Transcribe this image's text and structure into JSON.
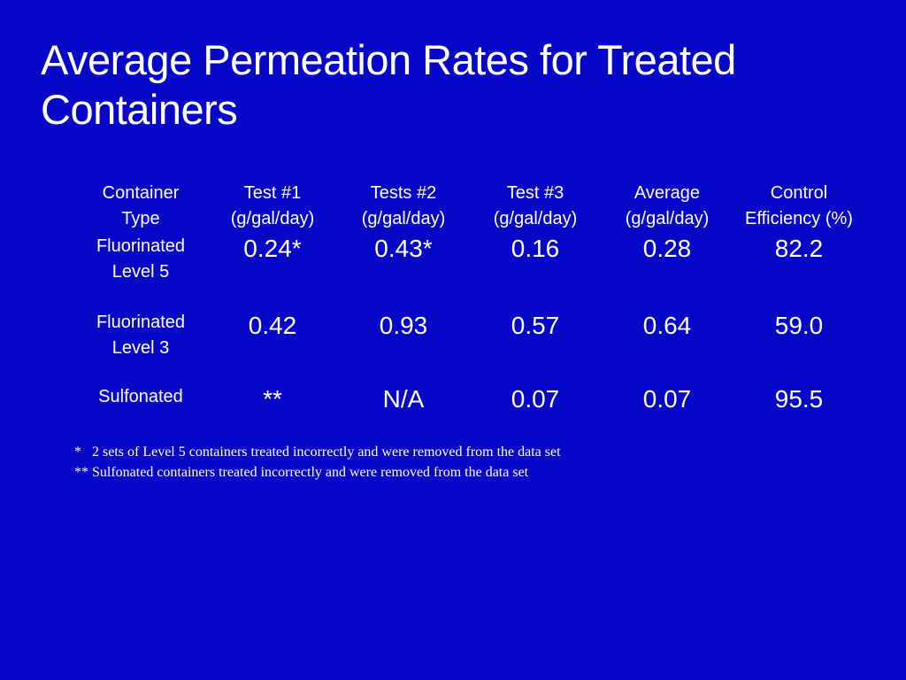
{
  "slide": {
    "title": "Average Permeation Rates for Treated Containers"
  },
  "table": {
    "headers": [
      "Container\nType",
      "Test #1\n(g/gal/day)",
      "Tests #2\n(g/gal/day)",
      "Test #3\n(g/gal/day)",
      "Average\n(g/gal/day)",
      "Control\nEfficiency (%)"
    ],
    "rows": [
      {
        "type": "Fluorinated\nLevel 5",
        "values": [
          "0.24*",
          "0.43*",
          "0.16",
          "0.28",
          "82.2"
        ]
      },
      {
        "type": "Fluorinated\nLevel 3",
        "values": [
          "0.42",
          "0.93",
          "0.57",
          "0.64",
          "59.0"
        ]
      },
      {
        "type": "Sulfonated",
        "values": [
          "**",
          "N/A",
          "0.07",
          "0.07",
          "95.5"
        ]
      }
    ]
  },
  "notes": [
    "*   2 sets of Level 5 containers treated incorrectly and were removed from the data set",
    "** Sulfonated containers treated incorrectly and were removed from the data set"
  ],
  "colors": {
    "background": "#0707C8",
    "text": "#FFFFFF"
  }
}
